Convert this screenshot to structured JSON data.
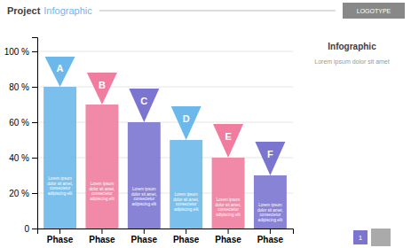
{
  "chart_data": {
    "type": "bar",
    "title": [
      "Project",
      "Infographic"
    ],
    "annotations": [
      "LOGOTYPE",
      "Infographic",
      "Lorem ipsum dolor sit amet",
      "1"
    ],
    "categories": [
      "Phase",
      "Phase",
      "Phase",
      "Phase",
      "Phase",
      "Phase"
    ],
    "values": [
      80,
      70,
      60,
      50,
      40,
      30
    ],
    "triangle_tops": [
      97,
      88,
      79,
      69,
      59,
      49
    ],
    "bar_labels": [
      "A",
      "B",
      "C",
      "D",
      "E",
      "F"
    ],
    "body_text": [
      "Lorem ipsum",
      "dolor sit amet,",
      "consectetur",
      "adipiscing elit"
    ],
    "colors": [
      "#6db8ea",
      "#f07ca0",
      "#7b75d0",
      "#6db8ea",
      "#f07ca0",
      "#7b75d0"
    ],
    "ylim": [
      0,
      108
    ],
    "yticks": [
      0,
      {
        "value": 20,
        "label": "20 %"
      },
      {
        "value": 40,
        "label": "40 %"
      },
      {
        "value": 60,
        "label": "60 %"
      },
      {
        "value": 80,
        "label": "80 %"
      },
      {
        "value": 100,
        "label": "100 %"
      }
    ],
    "grid": true
  }
}
